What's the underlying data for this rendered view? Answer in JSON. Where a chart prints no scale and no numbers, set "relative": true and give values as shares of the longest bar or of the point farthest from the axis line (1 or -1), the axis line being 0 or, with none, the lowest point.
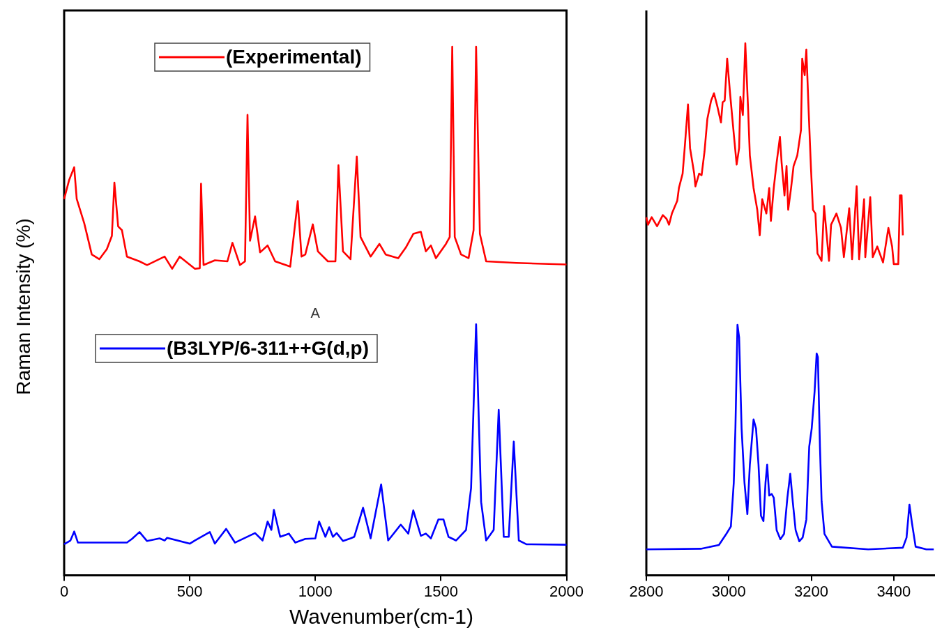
{
  "chart_data": [
    {
      "type": "line",
      "relative": true,
      "xlabel": "Wavenumber(cm-1)",
      "ylabel": "Raman Intensity (%)",
      "xlim": [
        0,
        2000
      ],
      "xticks": [
        0,
        500,
        1000,
        1500,
        2000
      ],
      "legend": "top",
      "marker": "none",
      "line_style": "solid",
      "tick_labels": "x",
      "annotations": [
        "A"
      ],
      "series": [
        {
          "name": "(Experimental)",
          "color": "#ff0000",
          "x": [
            0,
            20,
            40,
            50,
            80,
            110,
            140,
            170,
            190,
            200,
            215,
            230,
            250,
            300,
            330,
            400,
            430,
            460,
            520,
            540,
            545,
            555,
            600,
            650,
            670,
            700,
            720,
            730,
            740,
            760,
            780,
            810,
            840,
            900,
            930,
            945,
            960,
            990,
            1010,
            1050,
            1080,
            1092,
            1110,
            1140,
            1165,
            1180,
            1220,
            1255,
            1280,
            1330,
            1360,
            1390,
            1420,
            1440,
            1460,
            1480,
            1520,
            1535,
            1545,
            1555,
            1580,
            1610,
            1630,
            1640,
            1655,
            1680,
            1800,
            2000
          ],
          "values": [
            0.712,
            0.748,
            0.772,
            0.712,
            0.666,
            0.607,
            0.598,
            0.617,
            0.642,
            0.743,
            0.66,
            0.653,
            0.603,
            0.594,
            0.587,
            0.603,
            0.58,
            0.603,
            0.58,
            0.581,
            0.741,
            0.587,
            0.596,
            0.594,
            0.629,
            0.587,
            0.594,
            0.871,
            0.633,
            0.679,
            0.611,
            0.624,
            0.594,
            0.584,
            0.708,
            0.603,
            0.607,
            0.664,
            0.613,
            0.594,
            0.594,
            0.776,
            0.613,
            0.598,
            0.792,
            0.64,
            0.603,
            0.627,
            0.607,
            0.6,
            0.62,
            0.646,
            0.65,
            0.613,
            0.624,
            0.6,
            0.627,
            0.64,
            1,
            0.64,
            0.607,
            0.6,
            0.653,
            1,
            0.646,
            0.594,
            0.591,
            0.588
          ]
        },
        {
          "name": "(B3LYP/6-311++G(d,p)",
          "color": "#0000ff",
          "x": [
            0,
            25,
            40,
            55,
            150,
            250,
            270,
            300,
            330,
            380,
            400,
            410,
            500,
            520,
            580,
            600,
            645,
            680,
            760,
            790,
            810,
            825,
            835,
            860,
            895,
            920,
            960,
            1000,
            1015,
            1040,
            1055,
            1070,
            1085,
            1110,
            1140,
            1155,
            1190,
            1220,
            1262,
            1290,
            1340,
            1370,
            1390,
            1420,
            1440,
            1460,
            1490,
            1510,
            1530,
            1560,
            1600,
            1620,
            1640,
            1660,
            1680,
            1710,
            1730,
            1750,
            1770,
            1790,
            1810,
            1840,
            2000
          ],
          "values": [
            0.059,
            0.066,
            0.083,
            0.062,
            0.062,
            0.062,
            0.069,
            0.082,
            0.065,
            0.07,
            0.066,
            0.071,
            0.06,
            0.066,
            0.082,
            0.06,
            0.088,
            0.062,
            0.08,
            0.066,
            0.102,
            0.086,
            0.124,
            0.073,
            0.079,
            0.062,
            0.069,
            0.07,
            0.102,
            0.073,
            0.091,
            0.073,
            0.08,
            0.065,
            0.07,
            0.073,
            0.128,
            0.07,
            0.172,
            0.066,
            0.096,
            0.079,
            0.123,
            0.075,
            0.079,
            0.07,
            0.106,
            0.106,
            0.073,
            0.066,
            0.086,
            0.165,
            0.475,
            0.139,
            0.066,
            0.086,
            0.313,
            0.073,
            0.073,
            0.253,
            0.066,
            0.059,
            0.058
          ]
        }
      ]
    },
    {
      "type": "line",
      "relative": true,
      "xlim": [
        2800,
        3500
      ],
      "xticks": [
        2800,
        3000,
        3200,
        3400
      ],
      "marker": "none",
      "line_style": "solid",
      "tick_labels": "x",
      "series": [
        {
          "color": "#ff0000",
          "x": [
            2800,
            2804,
            2813,
            2826,
            2840,
            2849,
            2855,
            2862,
            2875,
            2879,
            2888,
            2893,
            2901,
            2906,
            2916,
            2919,
            2928,
            2934,
            2941,
            2948,
            2957,
            2964,
            2972,
            2981,
            2985,
            2990,
            2996,
            3003,
            3012,
            3019,
            3025,
            3028,
            3034,
            3040,
            3047,
            3051,
            3060,
            3069,
            3075,
            3081,
            3091,
            3098,
            3102,
            3109,
            3116,
            3124,
            3128,
            3135,
            3140,
            3144,
            3151,
            3157,
            3166,
            3175,
            3178,
            3184,
            3188,
            3194,
            3199,
            3204,
            3210,
            3215,
            3225,
            3231,
            3243,
            3248,
            3261,
            3272,
            3279,
            3292,
            3299,
            3310,
            3316,
            3328,
            3331,
            3343,
            3349,
            3360,
            3374,
            3387,
            3396,
            3400,
            3411,
            3415,
            3419,
            3422
          ],
          "values": [
            0.673,
            0.659,
            0.673,
            0.656,
            0.677,
            0.67,
            0.659,
            0.68,
            0.704,
            0.728,
            0.755,
            0.803,
            0.885,
            0.803,
            0.755,
            0.731,
            0.755,
            0.752,
            0.796,
            0.858,
            0.892,
            0.906,
            0.882,
            0.851,
            0.889,
            0.892,
            0.971,
            0.906,
            0.83,
            0.772,
            0.803,
            0.899,
            0.865,
            1,
            0.872,
            0.789,
            0.728,
            0.687,
            0.639,
            0.707,
            0.68,
            0.728,
            0.666,
            0.728,
            0.776,
            0.824,
            0.776,
            0.714,
            0.769,
            0.687,
            0.728,
            0.769,
            0.789,
            0.837,
            0.971,
            0.94,
            0.988,
            0.865,
            0.769,
            0.687,
            0.68,
            0.605,
            0.591,
            0.694,
            0.591,
            0.659,
            0.68,
            0.653,
            0.598,
            0.69,
            0.594,
            0.731,
            0.594,
            0.707,
            0.598,
            0.711,
            0.598,
            0.618,
            0.588,
            0.653,
            0.618,
            0.585,
            0.585,
            0.714,
            0.714,
            0.639
          ]
        },
        {
          "color": "#0000ff",
          "x": [
            2800,
            2932,
            2976,
            2994,
            3005,
            3012,
            3016,
            3021,
            3025,
            3031,
            3038,
            3045,
            3051,
            3060,
            3066,
            3072,
            3078,
            3084,
            3089,
            3093,
            3098,
            3104,
            3109,
            3116,
            3125,
            3134,
            3142,
            3149,
            3155,
            3162,
            3171,
            3179,
            3188,
            3195,
            3201,
            3208,
            3213,
            3216,
            3221,
            3225,
            3232,
            3250,
            3338,
            3422,
            3431,
            3438,
            3444,
            3453,
            3479,
            3497
          ],
          "values": [
            0.049,
            0.05,
            0.057,
            0.078,
            0.092,
            0.174,
            0.276,
            0.471,
            0.447,
            0.276,
            0.174,
            0.115,
            0.208,
            0.293,
            0.276,
            0.208,
            0.112,
            0.102,
            0.174,
            0.208,
            0.15,
            0.153,
            0.146,
            0.085,
            0.068,
            0.078,
            0.146,
            0.191,
            0.139,
            0.085,
            0.064,
            0.071,
            0.105,
            0.242,
            0.276,
            0.345,
            0.417,
            0.41,
            0.242,
            0.139,
            0.078,
            0.054,
            0.049,
            0.052,
            0.071,
            0.133,
            0.099,
            0.054,
            0.049,
            0.049
          ]
        }
      ]
    }
  ]
}
